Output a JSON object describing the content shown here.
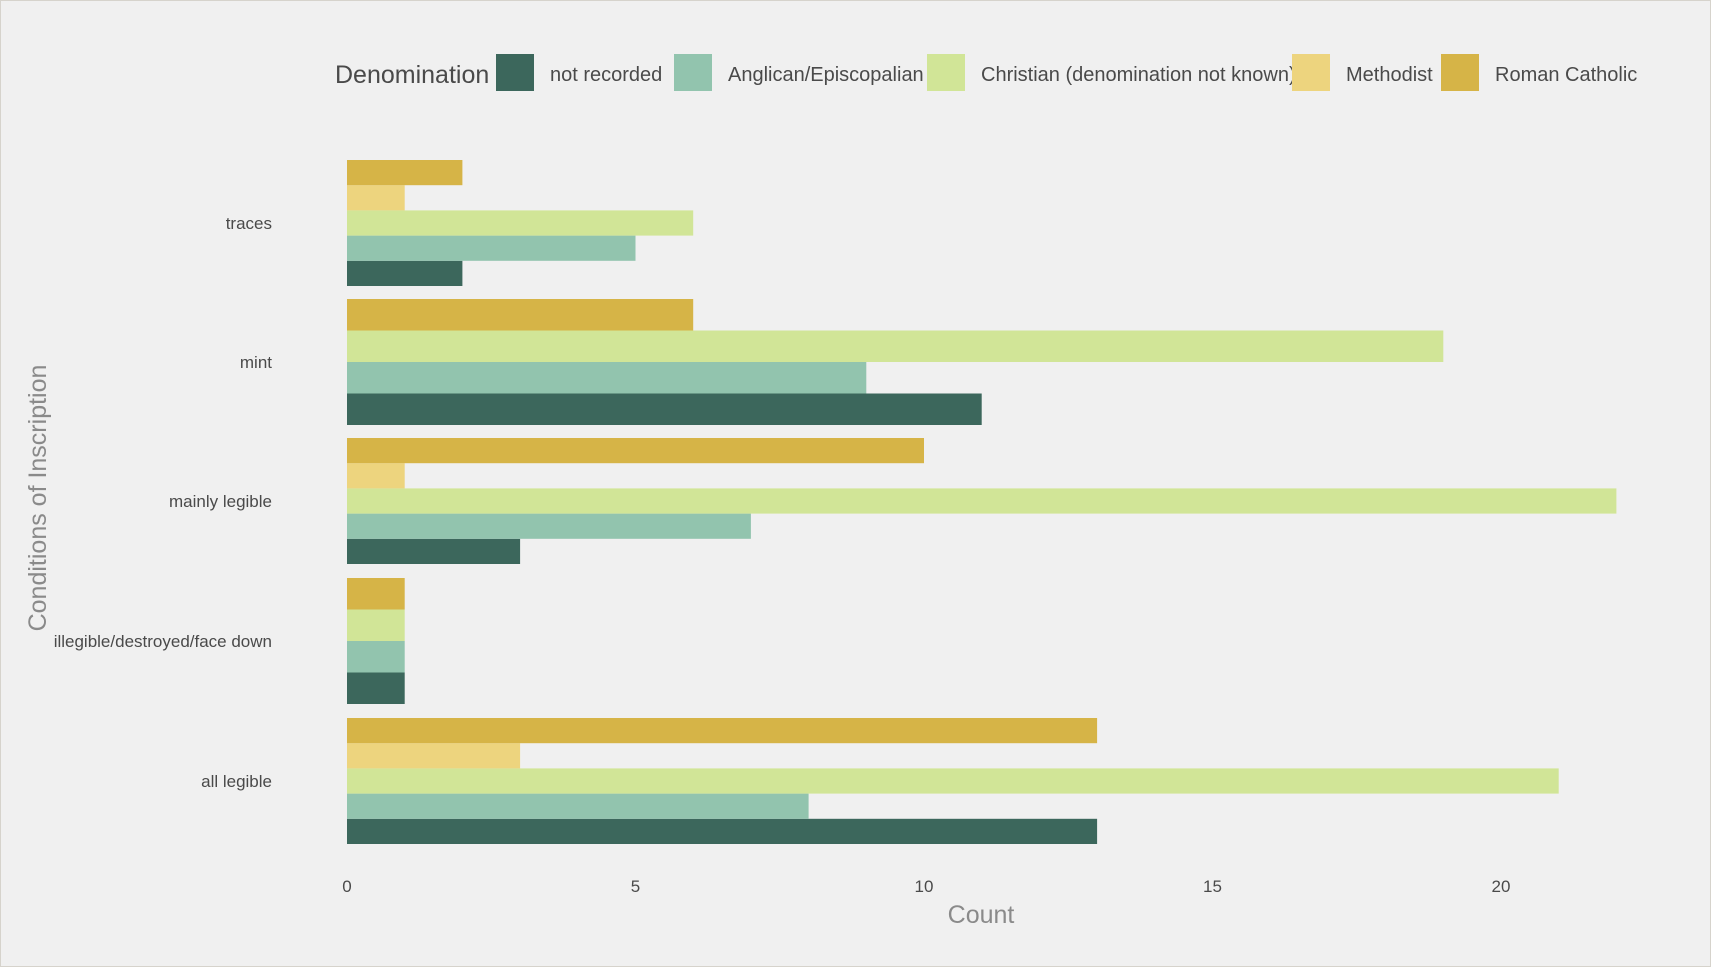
{
  "chart_data": {
    "type": "bar",
    "orientation": "horizontal",
    "xlabel": "Count",
    "ylabel": "Conditions of Inscription",
    "xlim": [
      0,
      22.6
    ],
    "x_ticks": [
      0,
      5,
      10,
      15,
      20
    ],
    "grid": false,
    "legend": {
      "title": "Denomination",
      "placement": "top"
    },
    "categories": [
      "all legible",
      "illegible/destroyed/face down",
      "mainly legible",
      "mint",
      "traces"
    ],
    "series": [
      {
        "name": "not recorded",
        "color": "#3c675c",
        "values": [
          13,
          1,
          3,
          11,
          2
        ]
      },
      {
        "name": "Anglican/Episcopalian",
        "color": "#92c4ae",
        "values": [
          8,
          1,
          7,
          9,
          5
        ]
      },
      {
        "name": "Christian (denomination not known)",
        "color": "#d1e597",
        "values": [
          21,
          1,
          22,
          19,
          6
        ]
      },
      {
        "name": "Methodist",
        "color": "#edd47e",
        "values": [
          3,
          0,
          1,
          0,
          1
        ]
      },
      {
        "name": "Roman Catholic",
        "color": "#d6b447",
        "values": [
          13,
          1,
          10,
          6,
          2
        ]
      }
    ]
  }
}
